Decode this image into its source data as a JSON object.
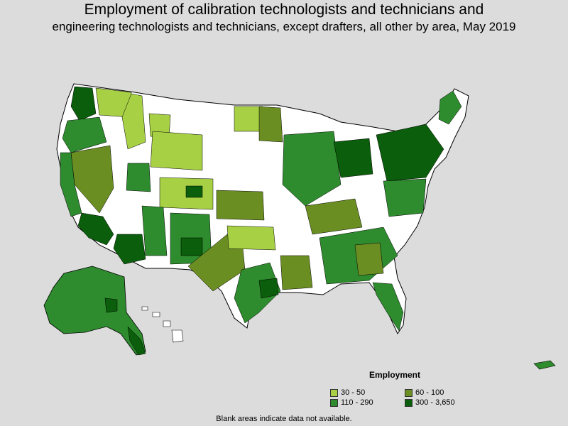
{
  "title_line1": "Employment of calibration technologists and technicians and",
  "title_line2": "engineering technologists and technicians, except drafters, all other by area, May 2019",
  "legend": {
    "title": "Employment",
    "items": [
      {
        "label": "30 - 50",
        "color": "#a8d045"
      },
      {
        "label": "60 - 100",
        "color": "#6b8e23"
      },
      {
        "label": "110 - 290",
        "color": "#2e8b2e"
      },
      {
        "label": "300 - 3,650",
        "color": "#0b5e0b"
      }
    ]
  },
  "footnote": "Blank areas indicate data not available.",
  "colors": {
    "background": "#dcdcdc",
    "no_data": "#ffffff",
    "border": "#000000"
  }
}
